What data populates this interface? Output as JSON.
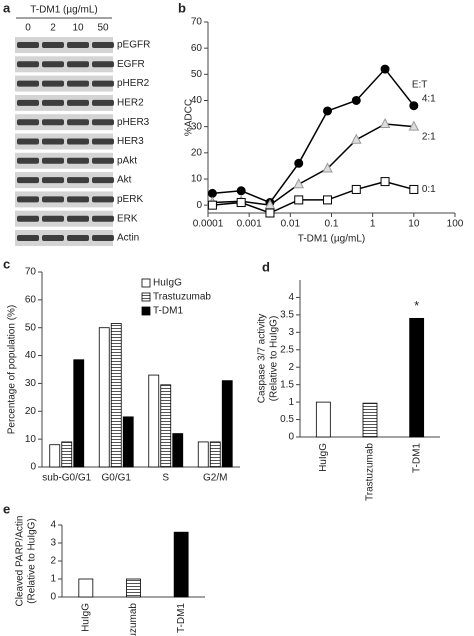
{
  "blot": {
    "panel": "a",
    "header": "T-DM1 (µg/mL)",
    "lanes": [
      "0",
      "2",
      "10",
      "50"
    ],
    "rows": [
      "pEGFR",
      "EGFR",
      "pHER2",
      "HER2",
      "pHER3",
      "HER3",
      "pAkt",
      "Akt",
      "pERK",
      "ERK",
      "Actin"
    ]
  },
  "chart_data": [
    {
      "type": "line",
      "panel": "b",
      "ylabel": [
        "%ADCC"
      ],
      "xlabel": "T-DM1 (µg/mL)",
      "xscale": "log",
      "x": [
        0.000128,
        0.00064,
        0.0032,
        0.016,
        0.08,
        0.4,
        2,
        10
      ],
      "series": [
        {
          "name": "4:1",
          "color": "#000000",
          "marker": "circle",
          "values": [
            4.5,
            5.5,
            1,
            16,
            36,
            40,
            52,
            38
          ]
        },
        {
          "name": "2:1",
          "color": "#999999",
          "marker": "triangle",
          "values": [
            1,
            1.5,
            0,
            8,
            14,
            25,
            31,
            30
          ]
        },
        {
          "name": "0:1",
          "color": "#000000",
          "marker": "square",
          "values": [
            0,
            1,
            -3,
            2,
            2,
            6,
            9,
            6
          ]
        }
      ],
      "annotation": "E:T",
      "xlim": [
        0.0001,
        100
      ],
      "xticks": [
        0.0001,
        0.001,
        0.01,
        0.1,
        1,
        10,
        100
      ],
      "ylim": [
        -3,
        70
      ],
      "yticks": [
        0,
        10,
        20,
        30,
        40,
        50,
        60,
        70
      ]
    },
    {
      "type": "bar",
      "panel": "c",
      "ylabel": [
        "Percentage of population (%)"
      ],
      "categories": [
        "sub-G0/G1",
        "G0/G1",
        "S",
        "G2/M"
      ],
      "series": [
        {
          "name": "HuIgG",
          "color": "#ffffff",
          "values": [
            8,
            50,
            33,
            9
          ]
        },
        {
          "name": "Trastuzumab",
          "color": "hatch",
          "values": [
            9,
            51.5,
            29.5,
            9
          ]
        },
        {
          "name": "T-DM1",
          "color": "#000000",
          "values": [
            38.5,
            18,
            12,
            31
          ]
        }
      ],
      "ylim": [
        0,
        70
      ],
      "yticks": [
        0,
        10,
        20,
        30,
        40,
        50,
        60,
        70
      ]
    },
    {
      "type": "bar",
      "panel": "d",
      "ylabel": [
        "Caspase 3/7 activity",
        "(Relative to HuIgG)"
      ],
      "categories": [
        "HuIgG",
        "Trastuzumab",
        "T-DM1"
      ],
      "values": [
        1,
        0.97,
        3.4
      ],
      "colors": [
        "#ffffff",
        "hatch",
        "#000000"
      ],
      "annotation": "*",
      "ylim": [
        0,
        4.5
      ],
      "yticks": [
        0,
        0.5,
        1,
        1.5,
        2,
        2.5,
        3,
        3.5,
        4
      ]
    },
    {
      "type": "bar",
      "panel": "e",
      "ylabel": [
        "Cleaved PARP/Actin",
        "(Relative to HuIgG)"
      ],
      "categories": [
        "HuIgG",
        "Trastuzumab",
        "T-DM1"
      ],
      "values": [
        1,
        1,
        3.6
      ],
      "colors": [
        "#ffffff",
        "hatch",
        "#000000"
      ],
      "ylim": [
        0,
        4
      ],
      "yticks": [
        0,
        1,
        2,
        3,
        4
      ]
    }
  ]
}
